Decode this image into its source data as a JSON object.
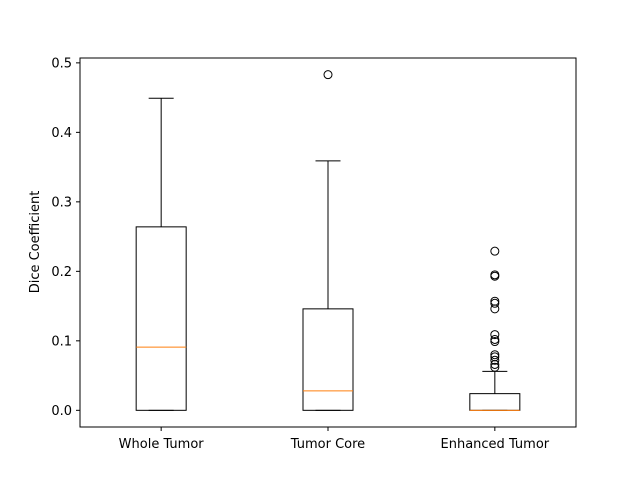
{
  "chart_data": {
    "type": "box",
    "categories": [
      "Whole Tumor",
      "Tumor Core",
      "Enhanced Tumor"
    ],
    "ylabel": "Dice Coefficient",
    "xlabel": "",
    "title": "",
    "ylim": [
      -0.024,
      0.507
    ],
    "yticks": [
      {
        "value": 0.0,
        "label": "0.0"
      },
      {
        "value": 0.1,
        "label": "0.1"
      },
      {
        "value": 0.2,
        "label": "0.2"
      },
      {
        "value": 0.3,
        "label": "0.3"
      },
      {
        "value": 0.4,
        "label": "0.4"
      },
      {
        "value": 0.5,
        "label": "0.5"
      }
    ],
    "grid": false,
    "boxes": [
      {
        "name": "Whole Tumor",
        "whisker_low": 0.0,
        "q1": 0.0,
        "median": 0.091,
        "q3": 0.264,
        "whisker_high": 0.449,
        "outliers": []
      },
      {
        "name": "Tumor Core",
        "whisker_low": 0.0,
        "q1": 0.0,
        "median": 0.028,
        "q3": 0.146,
        "whisker_high": 0.359,
        "outliers": [
          0.483
        ]
      },
      {
        "name": "Enhanced Tumor",
        "whisker_low": 0.0,
        "q1": 0.0,
        "median": 0.0,
        "q3": 0.024,
        "whisker_high": 0.056,
        "outliers": [
          0.062,
          0.066,
          0.072,
          0.077,
          0.08,
          0.099,
          0.102,
          0.109,
          0.146,
          0.154,
          0.157,
          0.193,
          0.195,
          0.229
        ]
      }
    ],
    "colors": {
      "box": "#000000",
      "median": "#ff7f0e",
      "outlier": "#000000"
    }
  }
}
